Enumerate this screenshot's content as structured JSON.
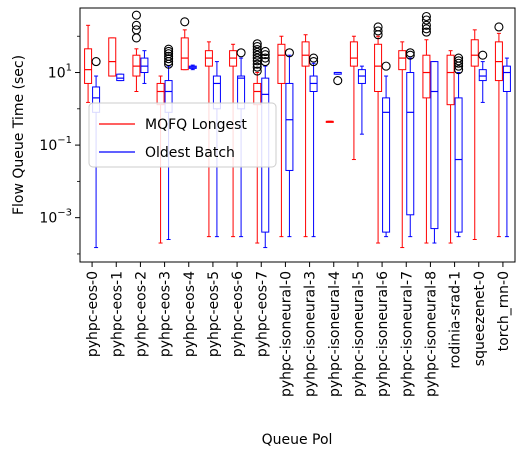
{
  "chart_data": {
    "type": "boxplot",
    "xlabel": "Queue Pol",
    "ylabel": "Flow Queue Time (sec)",
    "yscale": "log",
    "ylim": [
      6e-05,
      600
    ],
    "yticks": [
      {
        "value": 0.001,
        "base": "10",
        "exp": "−3"
      },
      {
        "value": 0.1,
        "base": "10",
        "exp": "−1"
      },
      {
        "value": 10,
        "base": "10",
        "exp": "1"
      }
    ],
    "categories": [
      "pyhpc-eos-0",
      "pyhpc-eos-1",
      "pyhpc-eos-2",
      "pyhpc-eos-3",
      "pyhpc-eos-4",
      "pyhpc-eos-5",
      "pyhpc-eos-6",
      "pyhpc-eos-7",
      "pyhpc-isoneural-0",
      "pyhpc-isoneural-3",
      "pyhpc-isoneural-4",
      "pyhpc-isoneural-5",
      "pyhpc-isoneural-6",
      "pyhpc-isoneural-7",
      "pyhpc-isoneural-8",
      "rodinia-srad-1",
      "squeezenet-0",
      "torch_rnn-0"
    ],
    "legend": {
      "position": "center-left"
    },
    "series": [
      {
        "name": "MQFQ Longest",
        "color": "#ff0000",
        "boxes": [
          {
            "whislo": 1.5,
            "q1": 5,
            "med": 12,
            "q3": 45,
            "whishi": 200,
            "fliers": []
          },
          {
            "whislo": 8,
            "q1": 8,
            "med": 20,
            "q3": 90,
            "whishi": 90,
            "fliers": []
          },
          {
            "whislo": 3,
            "q1": 8,
            "med": 15,
            "q3": 30,
            "whishi": 45,
            "fliers": [
              90,
              150,
              200,
              380
            ]
          },
          {
            "whislo": 0.0002,
            "q1": 1.3,
            "med": 3,
            "q3": 5,
            "whishi": 8,
            "fliers": []
          },
          {
            "whislo": 12,
            "q1": 12,
            "med": 25,
            "q3": 90,
            "whishi": 150,
            "fliers": [
              250
            ]
          },
          {
            "whislo": 0.0003,
            "q1": 15,
            "med": 25,
            "q3": 40,
            "whishi": 70,
            "fliers": []
          },
          {
            "whislo": 0.0003,
            "q1": 15,
            "med": 25,
            "q3": 40,
            "whishi": 60,
            "fliers": []
          },
          {
            "whislo": 0.0002,
            "q1": 1.3,
            "med": 3,
            "q3": 5,
            "whishi": 10,
            "fliers": [
              11,
              14,
              17,
              21,
              25,
              30,
              36,
              43,
              52,
              62
            ]
          },
          {
            "whislo": 0.0003,
            "q1": 5,
            "med": 30,
            "q3": 60,
            "whishi": 100,
            "fliers": []
          },
          {
            "whislo": 0.0003,
            "q1": 15,
            "med": 30,
            "q3": 70,
            "whishi": 110,
            "fliers": []
          },
          {
            "whislo": 0.45,
            "q1": 0.45,
            "med": 0.45,
            "q3": 0.45,
            "whishi": 0.45,
            "fliers": []
          },
          {
            "whislo": 0.04,
            "q1": 15,
            "med": 25,
            "q3": 70,
            "whishi": 100,
            "fliers": []
          },
          {
            "whislo": 0.0002,
            "q1": 3,
            "med": 15,
            "q3": 60,
            "whishi": 100,
            "fliers": [
              110,
              140,
              180
            ]
          },
          {
            "whislo": 0.00015,
            "q1": 12,
            "med": 25,
            "q3": 40,
            "whishi": 70,
            "fliers": []
          },
          {
            "whislo": 0.0002,
            "q1": 2,
            "med": 10,
            "q3": 30,
            "whishi": 80,
            "fliers": [
              130,
              160,
              200,
              280,
              350
            ]
          },
          {
            "whislo": 0.0002,
            "q1": 1.3,
            "med": 10,
            "q3": 30,
            "whishi": 40,
            "fliers": []
          },
          {
            "whislo": 0.00025,
            "q1": 15,
            "med": 30,
            "q3": 80,
            "whishi": 150,
            "fliers": []
          },
          {
            "whislo": 0.0003,
            "q1": 6,
            "med": 20,
            "q3": 70,
            "whishi": 120,
            "fliers": [
              180
            ]
          }
        ]
      },
      {
        "name": "Oldest Batch",
        "color": "#0000ff",
        "boxes": [
          {
            "whislo": 0.00015,
            "q1": 0.8,
            "med": 2,
            "q3": 4,
            "whishi": 8,
            "fliers": [
              20
            ]
          },
          {
            "whislo": 6,
            "q1": 6,
            "med": 7,
            "q3": 9,
            "whishi": 9,
            "fliers": []
          },
          {
            "whislo": 5,
            "q1": 10,
            "med": 15,
            "q3": 25,
            "whishi": 40,
            "fliers": []
          },
          {
            "whislo": 0.00025,
            "q1": 0.8,
            "med": 3,
            "q3": 6,
            "whishi": 15,
            "fliers": [
              17,
              20,
              24,
              28,
              33,
              38,
              44
            ]
          },
          {
            "whislo": 12,
            "q1": 13,
            "med": 14,
            "q3": 15,
            "whishi": 16,
            "fliers": []
          },
          {
            "whislo": 0.0003,
            "q1": 1,
            "med": 5,
            "q3": 8,
            "whishi": 20,
            "fliers": []
          },
          {
            "whislo": 0.0003,
            "q1": 1,
            "med": 7,
            "q3": 8,
            "whishi": 25,
            "fliers": [
              35
            ]
          },
          {
            "whislo": 0.00015,
            "q1": 0.0004,
            "med": 2.5,
            "q3": 7,
            "whishi": 15,
            "fliers": [
              20,
              25,
              31,
              38
            ]
          },
          {
            "whislo": 0.0003,
            "q1": 0.02,
            "med": 0.5,
            "q3": 5,
            "whishi": 30,
            "fliers": [
              35
            ]
          },
          {
            "whislo": 0.0003,
            "q1": 3,
            "med": 5,
            "q3": 8,
            "whishi": 18,
            "fliers": [
              20,
              25
            ]
          },
          {
            "whislo": 9,
            "q1": 9,
            "med": 10,
            "q3": 10,
            "whishi": 10,
            "fliers": [
              6
            ]
          },
          {
            "whislo": 0.2,
            "q1": 5,
            "med": 8,
            "q3": 12,
            "whishi": 15,
            "fliers": []
          },
          {
            "whislo": 0.0003,
            "q1": 0.0004,
            "med": 0.8,
            "q3": 2,
            "whishi": 8,
            "fliers": [
              15
            ]
          },
          {
            "whislo": 0.0003,
            "q1": 0.0012,
            "med": 0.8,
            "q3": 10,
            "whishi": 25,
            "fliers": [
              30,
              35
            ]
          },
          {
            "whislo": 0.0002,
            "q1": 0.0005,
            "med": 3,
            "q3": 20,
            "whishi": 20,
            "fliers": []
          },
          {
            "whislo": 0.0003,
            "q1": 0.0004,
            "med": 0.04,
            "q3": 2,
            "whishi": 10,
            "fliers": [
              12,
              15,
              18,
              21,
              25
            ]
          },
          {
            "whislo": 1.5,
            "q1": 6,
            "med": 8,
            "q3": 12,
            "whishi": 20,
            "fliers": [
              30
            ]
          },
          {
            "whislo": 0.0003,
            "q1": 3,
            "med": 10,
            "q3": 15,
            "whishi": 25,
            "fliers": []
          }
        ]
      }
    ]
  }
}
